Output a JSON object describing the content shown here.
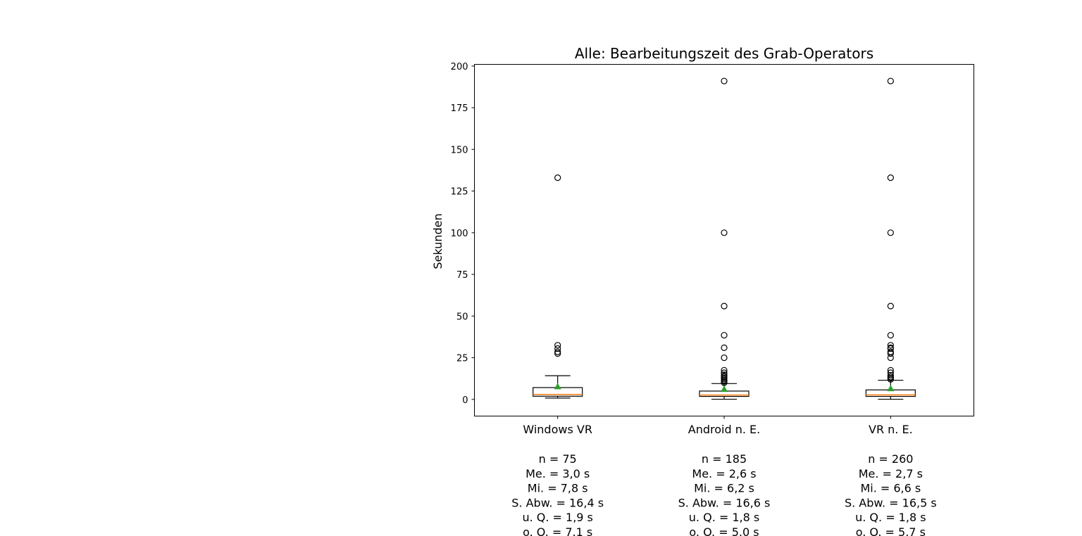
{
  "chart_data": {
    "type": "box",
    "title": "Alle: Bearbeitungszeit des Grab-Operators",
    "ylabel": "Sekunden",
    "xlabel": "",
    "ylim": [
      -10,
      201
    ],
    "yticks": [
      0,
      25,
      50,
      75,
      100,
      125,
      150,
      175,
      200
    ],
    "grid": false,
    "colors": {
      "median": "#ff7f0e",
      "mean": "#2ca02c",
      "box": "#000000"
    },
    "groups": [
      {
        "label": "Windows VR",
        "stats": [
          "n = 75",
          "Me. = 3,0 s",
          "Mi. = 7,8 s",
          "S. Abw. = 16,4 s",
          "u. Q. = 1,9 s",
          "o. O. = 7.1 s"
        ],
        "whisker_low": 0.8,
        "q1": 1.9,
        "median": 3.0,
        "q3": 7.1,
        "whisker_high": 14.2,
        "mean": 7.8,
        "outliers": [
          27.5,
          28.5,
          30.5,
          32.5,
          133.0
        ]
      },
      {
        "label": "Android n. E.",
        "stats": [
          "n = 185",
          "Me. = 2,6 s",
          "Mi. = 6,2 s",
          "S. Abw. = 16,6 s",
          "u. Q. = 1,8 s",
          "o. O. = 5.0 s"
        ],
        "whisker_low": 0.1,
        "q1": 1.8,
        "median": 2.6,
        "q3": 5.0,
        "whisker_high": 9.5,
        "mean": 6.2,
        "outliers": [
          10.0,
          10.8,
          11.5,
          12.2,
          13.0,
          13.8,
          14.8,
          16.0,
          17.5,
          25.0,
          31.0,
          38.5,
          56.0,
          100.0,
          191.0
        ]
      },
      {
        "label": "VR  n. E.",
        "stats": [
          "n = 260",
          "Me. = 2,7 s",
          "Mi. = 6,6 s",
          "S. Abw. = 16,5 s",
          "u. Q. = 1,8 s",
          "o. O. = 5.7 s"
        ],
        "whisker_low": 0.1,
        "q1": 1.8,
        "median": 2.7,
        "q3": 5.7,
        "whisker_high": 11.5,
        "mean": 6.6,
        "outliers": [
          12.0,
          12.8,
          13.5,
          14.5,
          16.0,
          17.5,
          25.0,
          27.5,
          28.5,
          30.5,
          31.0,
          32.5,
          38.5,
          56.0,
          100.0,
          133.0,
          191.0
        ]
      }
    ]
  }
}
